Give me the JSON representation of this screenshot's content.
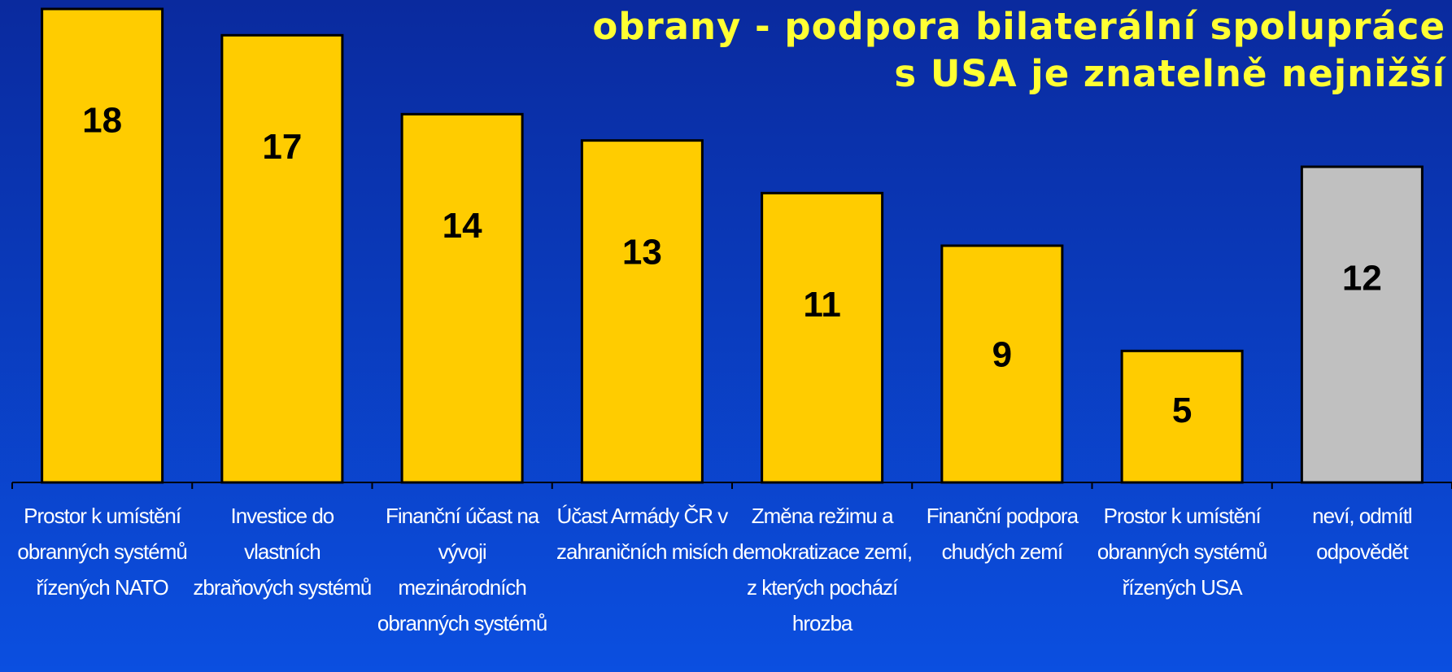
{
  "chart_data": {
    "type": "bar",
    "title": [
      "obrany - podpora bilaterální spolupráce",
      "s USA je znatelně nejnižší"
    ],
    "categories": [
      "Prostor k umístění obranných systémů řízených NATO",
      "Investice do vlastních zbraňových systémů",
      "Finanční účast na vývoji mezinárodních obranných systémů",
      "Účast Armády ČR v zahraničních misích",
      "Změna režimu a demokratizace zemí, z kterých pochází hrozba",
      "Finanční podpora chudých zemí",
      "Prostor k umístění obranných systémů řízených USA",
      "neví, odmítl odpovědět"
    ],
    "values": [
      18,
      17,
      14,
      13,
      11,
      9,
      5,
      12
    ],
    "colors": [
      "#ffcc00",
      "#ffcc00",
      "#ffcc00",
      "#ffcc00",
      "#ffcc00",
      "#ffcc00",
      "#ffcc00",
      "#c0c0c0"
    ],
    "ylim": [
      0,
      18
    ]
  }
}
